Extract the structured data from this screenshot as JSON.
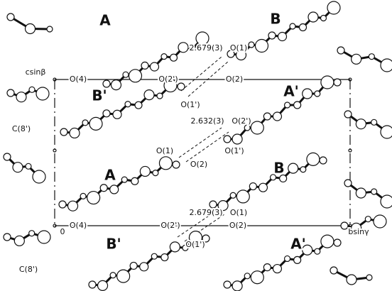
{
  "labels": [
    "A",
    "B",
    "csinβ",
    "O(4)",
    "O(2')",
    "O(2)",
    "2.679(3)",
    "O(1)",
    "B'",
    "A'",
    "O(1')",
    "C(8')",
    "2.632(3)",
    "O(2')",
    "O(1)",
    "O(1')",
    "O(2)",
    "A",
    "B",
    "2.679(3)",
    "O(1)",
    "0",
    "O(4)",
    "O(2')",
    "O(2)",
    "bsinγ",
    "B'",
    "A'",
    "O(1')",
    "C(8')"
  ]
}
